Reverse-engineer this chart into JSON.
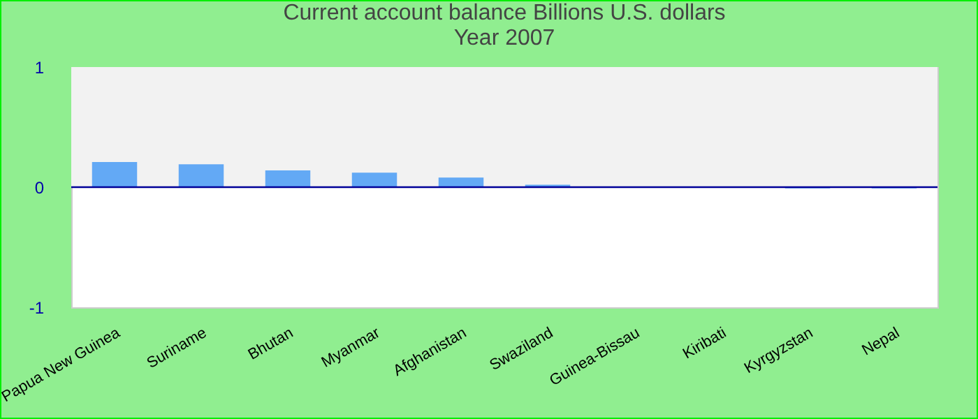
{
  "chart_data": {
    "type": "bar",
    "title": "Current account balance Billions U.S. dollars",
    "subtitle": "Year 2007",
    "categories": [
      "Papua New Guinea",
      "Suriname",
      "Bhutan",
      "Myanmar",
      "Afghanistan",
      "Swaziland",
      "Guinea-Bissau",
      "Kiribati",
      "Kyrgyzstan",
      "Nepal"
    ],
    "values": [
      0.21,
      0.19,
      0.14,
      0.12,
      0.08,
      0.02,
      0,
      0,
      -0.01,
      -0.01
    ],
    "color": "#63a9f5",
    "ylim": [
      -1,
      1
    ],
    "yticks": [
      -1,
      0,
      1
    ],
    "grid": false,
    "ref_lines": [
      {
        "axis": "y",
        "value": 0,
        "color": "#000099"
      }
    ],
    "bands": [
      {
        "axis": "y",
        "from": 0,
        "to": 1,
        "color": "#f2f2f2"
      }
    ]
  }
}
